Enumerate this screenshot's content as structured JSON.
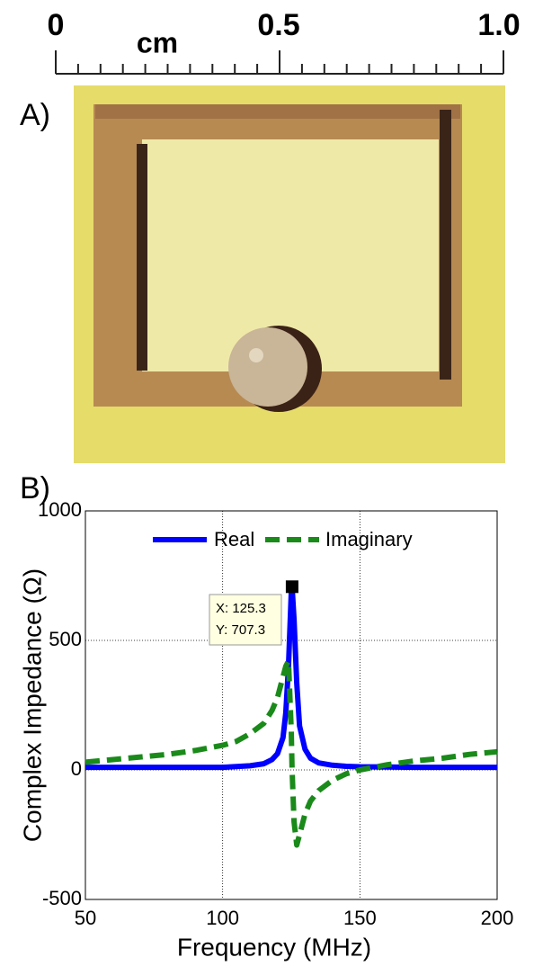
{
  "figure": {
    "ruler": {
      "labels": [
        "0",
        "0.5",
        "1.0"
      ],
      "unit": "cm"
    },
    "panel_labels": [
      "A)",
      "B)"
    ]
  },
  "chart_data": {
    "type": "line",
    "x_label": "Frequency (MHz)",
    "y_label": "Complex Impedance (Ω)",
    "x": [
      50,
      60,
      70,
      80,
      90,
      100,
      105,
      110,
      115,
      118,
      120,
      122,
      123,
      124,
      125,
      125.3,
      126,
      127,
      128,
      130,
      132,
      135,
      140,
      145,
      150,
      160,
      170,
      180,
      190,
      200
    ],
    "series": [
      {
        "name": "Real",
        "color": "#0000ff",
        "dash": false,
        "values": [
          10,
          10,
          10,
          10,
          10,
          10,
          13,
          16,
          24,
          40,
          63,
          125,
          220,
          400,
          685,
          707.3,
          580,
          335,
          170,
          80,
          45,
          27,
          18,
          14,
          12,
          11,
          10,
          10,
          10,
          10
        ]
      },
      {
        "name": "Imaginary",
        "color": "#1a8a1a",
        "dash": true,
        "values": [
          30,
          40,
          50,
          60,
          75,
          95,
          110,
          140,
          180,
          230,
          280,
          360,
          400,
          420,
          150,
          0,
          -200,
          -290,
          -250,
          -170,
          -120,
          -80,
          -40,
          -15,
          0,
          20,
          35,
          45,
          60,
          70
        ]
      }
    ],
    "xlim": [
      50,
      200
    ],
    "xticks": [
      50,
      100,
      150,
      200
    ],
    "ylim": [
      -500,
      1000
    ],
    "yticks": [
      -500,
      0,
      500,
      1000
    ],
    "grid": true,
    "legend": "top",
    "datatip": {
      "x": 125.3,
      "y": 707.3,
      "lines": [
        "X: 125.3",
        "Y: 707.3"
      ]
    }
  }
}
